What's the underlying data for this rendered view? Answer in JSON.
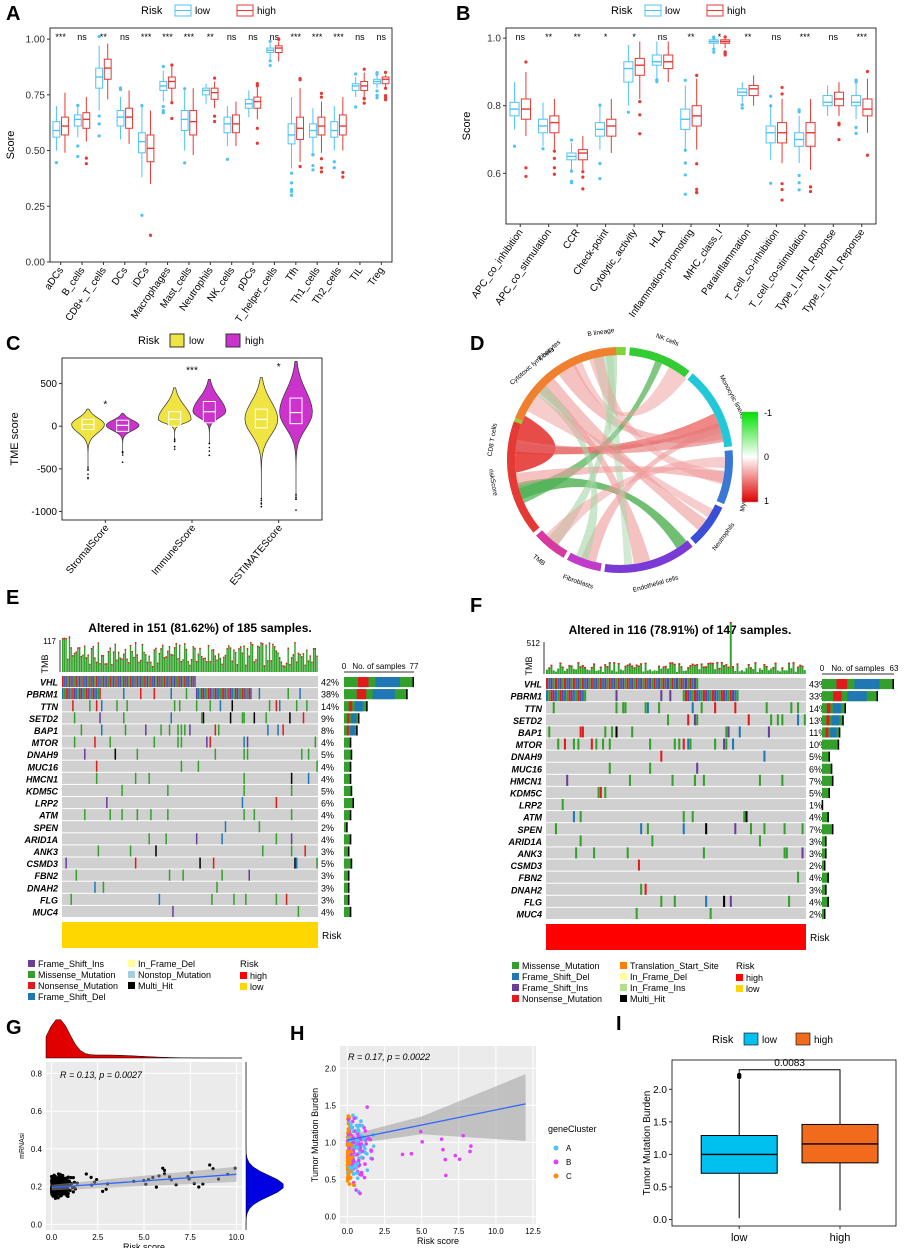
{
  "colors": {
    "low": "#4fc3f7",
    "high": "#e53935",
    "violin_low": "#f0e442",
    "violin_high": "#cc33cc",
    "grey": "#d0d0d0",
    "risk_high": "#ff0000",
    "risk_low": "#ffd700",
    "box_low": "#00c0ef",
    "box_high": "#f26b1d",
    "green": "#33a02c",
    "blue": "#1f78b4",
    "red": "#e31a1c",
    "purple": "#6a3d9a",
    "black": "#000000",
    "yellow": "#ffff99",
    "orange": "#ff7f00"
  },
  "panels": {
    "A": "A",
    "B": "B",
    "C": "C",
    "D": "D",
    "E": "E",
    "F": "F",
    "G": "G",
    "H": "H",
    "I": "I"
  },
  "chart_data": [
    {
      "id": "A",
      "type": "box",
      "legend_title": "Risk",
      "legend": [
        "low",
        "high"
      ],
      "ylabel": "Score",
      "ylim": [
        0,
        1.05
      ],
      "yticks": [
        0.0,
        0.25,
        0.5,
        0.75,
        1.0
      ],
      "ytick_labels": [
        "0.00",
        "0.25",
        "0.50",
        "0.75",
        "1.00"
      ],
      "categories": [
        "aDCs",
        "B_cells",
        "CD8+_T_cells",
        "DCs",
        "iDCs",
        "Macrophages",
        "Mast_cells",
        "Neutrophils",
        "NK_cells",
        "pDCs",
        "T_helper_cells",
        "Tfh",
        "Th1_cells",
        "Th2_cells",
        "TIL",
        "Treg"
      ],
      "significance": [
        "***",
        "ns",
        "**",
        "ns",
        "***",
        "***",
        "***",
        "**",
        "ns",
        "ns",
        "ns",
        "***",
        "***",
        "***",
        "ns",
        "ns"
      ],
      "series": [
        {
          "name": "low",
          "median": [
            0.59,
            0.64,
            0.83,
            0.65,
            0.54,
            0.79,
            0.64,
            0.77,
            0.62,
            0.71,
            0.95,
            0.57,
            0.59,
            0.59,
            0.79,
            0.81
          ],
          "q1": [
            0.56,
            0.61,
            0.78,
            0.61,
            0.49,
            0.77,
            0.59,
            0.75,
            0.58,
            0.69,
            0.94,
            0.53,
            0.56,
            0.56,
            0.77,
            0.8
          ],
          "q3": [
            0.63,
            0.66,
            0.87,
            0.68,
            0.58,
            0.81,
            0.68,
            0.78,
            0.65,
            0.73,
            0.96,
            0.62,
            0.62,
            0.63,
            0.8,
            0.82
          ],
          "lo": [
            0.5,
            0.56,
            0.68,
            0.55,
            0.38,
            0.72,
            0.5,
            0.71,
            0.52,
            0.65,
            0.91,
            0.42,
            0.49,
            0.5,
            0.74,
            0.78
          ],
          "hi": [
            0.7,
            0.7,
            0.97,
            0.74,
            0.7,
            0.86,
            0.77,
            0.8,
            0.7,
            0.77,
            0.98,
            0.74,
            0.69,
            0.7,
            0.83,
            0.84
          ]
        },
        {
          "name": "high",
          "median": [
            0.61,
            0.64,
            0.87,
            0.65,
            0.51,
            0.81,
            0.63,
            0.76,
            0.62,
            0.72,
            0.96,
            0.6,
            0.61,
            0.61,
            0.79,
            0.82
          ],
          "q1": [
            0.57,
            0.6,
            0.82,
            0.6,
            0.45,
            0.78,
            0.57,
            0.73,
            0.58,
            0.69,
            0.94,
            0.55,
            0.57,
            0.57,
            0.77,
            0.8
          ],
          "q3": [
            0.65,
            0.67,
            0.91,
            0.69,
            0.57,
            0.83,
            0.68,
            0.78,
            0.66,
            0.74,
            0.97,
            0.65,
            0.65,
            0.66,
            0.81,
            0.83
          ],
          "lo": [
            0.49,
            0.54,
            0.73,
            0.53,
            0.35,
            0.72,
            0.48,
            0.69,
            0.52,
            0.64,
            0.9,
            0.45,
            0.49,
            0.5,
            0.74,
            0.78
          ],
          "hi": [
            0.76,
            0.74,
            0.98,
            0.77,
            0.68,
            0.88,
            0.78,
            0.81,
            0.72,
            0.79,
            0.99,
            0.78,
            0.72,
            0.74,
            0.85,
            0.84
          ]
        }
      ]
    },
    {
      "id": "B",
      "type": "box",
      "legend_title": "Risk",
      "legend": [
        "low",
        "high"
      ],
      "ylabel": "Score",
      "ylim": [
        0.45,
        1.03
      ],
      "yticks": [
        0.6,
        0.8,
        1.0
      ],
      "ytick_labels": [
        "0.6",
        "0.8",
        "1.0"
      ],
      "categories": [
        "APC_co_inhibition",
        "APC_co_stimulation",
        "CCR",
        "Check-point",
        "Cytolytic_activity",
        "HLA",
        "Inflammation-promoting",
        "MHC_class_I",
        "Parainflammation",
        "T_cell_co-inhibition",
        "T_cell_co-stimulation",
        "Type_I_IFN_Reponse",
        "Type_II_IFN_Reponse"
      ],
      "significance": [
        "ns",
        "**",
        "**",
        "*",
        "*",
        "ns",
        "**",
        "*",
        "**",
        "ns",
        "***",
        "ns",
        "***"
      ],
      "series": [
        {
          "name": "low",
          "median": [
            0.79,
            0.74,
            0.65,
            0.73,
            0.91,
            0.93,
            0.76,
            0.99,
            0.84,
            0.72,
            0.7,
            0.81,
            0.81
          ],
          "q1": [
            0.77,
            0.72,
            0.64,
            0.71,
            0.87,
            0.92,
            0.73,
            0.985,
            0.83,
            0.69,
            0.68,
            0.8,
            0.8
          ],
          "q3": [
            0.81,
            0.76,
            0.66,
            0.75,
            0.93,
            0.95,
            0.79,
            0.995,
            0.85,
            0.74,
            0.72,
            0.83,
            0.83
          ],
          "lo": [
            0.73,
            0.68,
            0.61,
            0.67,
            0.8,
            0.88,
            0.67,
            0.97,
            0.81,
            0.64,
            0.63,
            0.77,
            0.76
          ],
          "hi": [
            0.87,
            0.81,
            0.69,
            0.8,
            0.98,
            0.99,
            0.86,
            1.0,
            0.87,
            0.8,
            0.77,
            0.86,
            0.87
          ]
        },
        {
          "name": "high",
          "median": [
            0.79,
            0.75,
            0.66,
            0.74,
            0.92,
            0.93,
            0.77,
            0.99,
            0.85,
            0.72,
            0.72,
            0.82,
            0.79
          ],
          "q1": [
            0.76,
            0.72,
            0.64,
            0.71,
            0.89,
            0.91,
            0.74,
            0.985,
            0.83,
            0.69,
            0.68,
            0.8,
            0.77
          ],
          "q3": [
            0.82,
            0.77,
            0.67,
            0.76,
            0.94,
            0.95,
            0.8,
            0.995,
            0.86,
            0.75,
            0.75,
            0.84,
            0.82
          ],
          "lo": [
            0.71,
            0.67,
            0.61,
            0.66,
            0.82,
            0.87,
            0.67,
            0.97,
            0.8,
            0.63,
            0.61,
            0.77,
            0.72
          ],
          "hi": [
            0.9,
            0.82,
            0.71,
            0.82,
            0.99,
            0.99,
            0.88,
            1.0,
            0.89,
            0.82,
            0.82,
            0.87,
            0.88
          ]
        }
      ]
    },
    {
      "id": "C",
      "type": "violin",
      "legend_title": "Risk",
      "legend": [
        "low",
        "high"
      ],
      "ylabel": "TME score",
      "ylim": [
        -1100,
        800
      ],
      "yticks": [
        500,
        0,
        -500,
        -1000
      ],
      "ytick_labels": [
        "500",
        "0",
        "-500",
        "-1000"
      ],
      "categories": [
        "StromalScore",
        "ImmuneScore",
        "ESTIMATEScore"
      ],
      "significance": [
        "*",
        "***",
        "*"
      ],
      "series": [
        {
          "name": "low",
          "median": [
            20,
            80,
            80
          ],
          "q1": [
            -40,
            0,
            -20
          ],
          "q3": [
            80,
            170,
            200
          ],
          "min": [
            -480,
            -150,
            -850
          ],
          "max": [
            200,
            450,
            570
          ]
        },
        {
          "name": "high",
          "median": [
            10,
            170,
            160
          ],
          "q1": [
            -60,
            40,
            30
          ],
          "q3": [
            70,
            290,
            330
          ],
          "min": [
            -300,
            -200,
            -800
          ],
          "max": [
            150,
            550,
            760
          ]
        }
      ]
    },
    {
      "id": "D",
      "type": "chord",
      "sectors": [
        "CD8 T cells",
        "Cytotoxic lymphocytes",
        "B lineage",
        "NK cells",
        "Monocytic lineage",
        "Myeloid dendritic cells",
        "Neutrophils",
        "Endothelial cells",
        "Fibroblasts",
        "TMB",
        "riskScore",
        "T cells"
      ],
      "color_scale": {
        "labels": [
          "-1",
          "0",
          "1"
        ],
        "range": [
          -1,
          1
        ]
      }
    },
    {
      "id": "E",
      "type": "oncoplot",
      "title": "Altered in 151 (81.62%) of 185 samples.",
      "tmb_axis_label": "TMB",
      "tmb_max": "117",
      "no_samples_label": "No. of samples",
      "no_samples_ticks": [
        "0",
        "77"
      ],
      "genes": [
        "VHL",
        "PBRM1",
        "TTN",
        "SETD2",
        "BAP1",
        "MTOR",
        "DNAH9",
        "MUC16",
        "HMCN1",
        "KDM5C",
        "LRP2",
        "ATM",
        "SPEN",
        "ARID1A",
        "ANK3",
        "CSMD3",
        "FBN2",
        "DNAH2",
        "FLG",
        "MUC4"
      ],
      "percents": [
        "42%",
        "38%",
        "14%",
        "9%",
        "8%",
        "4%",
        "5%",
        "4%",
        "4%",
        "5%",
        "6%",
        "4%",
        "2%",
        "4%",
        "3%",
        "5%",
        "3%",
        "3%",
        "3%",
        "4%"
      ],
      "counts": [
        77,
        70,
        26,
        17,
        15,
        8,
        9,
        8,
        8,
        9,
        11,
        8,
        4,
        8,
        6,
        9,
        6,
        6,
        6,
        8
      ],
      "risk_label": "Risk",
      "legend_items": [
        "Frame_Shift_Ins",
        "Missense_Mutation",
        "Nonsense_Mutation",
        "Frame_Shift_Del",
        "In_Frame_Del",
        "Nonstop_Mutation",
        "Multi_Hit"
      ],
      "risk_legend_title": "Risk",
      "risk_legend": [
        "high",
        "low"
      ]
    },
    {
      "id": "F",
      "type": "oncoplot",
      "title": "Altered in 116 (78.91%) of 147 samples.",
      "tmb_axis_label": "TMB",
      "tmb_max": "512",
      "no_samples_label": "No. of samples",
      "no_samples_ticks": [
        "0",
        "63"
      ],
      "genes": [
        "VHL",
        "PBRM1",
        "TTN",
        "SETD2",
        "BAP1",
        "MTOR",
        "DNAH9",
        "MUC16",
        "HMCN1",
        "KDM5C",
        "LRP2",
        "ATM",
        "SPEN",
        "ARID1A",
        "ANK3",
        "CSMD3",
        "FBN2",
        "DNAH2",
        "FLG",
        "MUC4"
      ],
      "percents": [
        "43%",
        "33%",
        "14%",
        "13%",
        "11%",
        "10%",
        "5%",
        "6%",
        "7%",
        "5%",
        "1%",
        "4%",
        "7%",
        "3%",
        "3%",
        "2%",
        "4%",
        "3%",
        "4%",
        "2%"
      ],
      "counts": [
        63,
        49,
        21,
        19,
        16,
        15,
        7,
        9,
        10,
        7,
        1,
        6,
        10,
        4,
        4,
        3,
        6,
        4,
        6,
        3
      ],
      "risk_label": "Risk",
      "legend_items": [
        "Missense_Mutation",
        "Frame_Shift_Del",
        "Frame_Shift_Ins",
        "Nonsense_Mutation",
        "Translation_Start_Site",
        "In_Frame_Del",
        "In_Frame_Ins",
        "Multi_Hit"
      ],
      "risk_legend_title": "Risk",
      "risk_legend": [
        "high",
        "low"
      ]
    },
    {
      "id": "G",
      "type": "scatter",
      "annotation": "R = 0.13, p = 0.0027",
      "xlabel": "Risk score",
      "ylabel": "mRNAsi",
      "xlim": [
        -0.3,
        10.3
      ],
      "ylim": [
        -0.03,
        0.86
      ],
      "xticks": [
        0.0,
        2.5,
        5.0,
        7.5,
        10.0
      ],
      "xtick_labels": [
        "0.0",
        "2.5",
        "5.0",
        "7.5",
        "10.0"
      ],
      "yticks": [
        0.0,
        0.2,
        0.4,
        0.6,
        0.8
      ],
      "ytick_labels": [
        "0.0",
        "0.2",
        "0.4",
        "0.6",
        "0.8"
      ],
      "fit": {
        "x": [
          0.0,
          10.0
        ],
        "y": [
          0.195,
          0.265
        ]
      }
    },
    {
      "id": "H",
      "type": "scatter",
      "annotation": "R = 0.17, p = 0.0022",
      "xlabel": "Risk score",
      "ylabel": "Tumor Mutation Burden",
      "xlim": [
        -0.5,
        12.7
      ],
      "ylim": [
        -0.1,
        2.3
      ],
      "xticks": [
        0.0,
        2.5,
        5.0,
        7.5,
        10.0,
        12.5
      ],
      "xtick_labels": [
        "0.0",
        "2.5",
        "5.0",
        "7.5",
        "10.0",
        "12.5"
      ],
      "yticks": [
        0.0,
        0.5,
        1.0,
        1.5,
        2.0
      ],
      "ytick_labels": [
        "0.0",
        "0.5",
        "1.0",
        "1.5",
        "2.0"
      ],
      "legend_title": "geneCluster",
      "legend": [
        "A",
        "B",
        "C"
      ],
      "fit": {
        "x": [
          0.0,
          12.0
        ],
        "y": [
          1.03,
          1.52
        ]
      }
    },
    {
      "id": "I",
      "type": "box",
      "legend_title": "Risk",
      "legend": [
        "low",
        "high"
      ],
      "ylabel": "Tumor Mutation Burden",
      "ylim": [
        -0.1,
        2.45
      ],
      "yticks": [
        0.0,
        0.5,
        1.0,
        1.5,
        2.0
      ],
      "ytick_labels": [
        "0.0",
        "0.5",
        "1.0",
        "1.5",
        "2.0"
      ],
      "categories": [
        "low",
        "high"
      ],
      "pvalue": "0.0083",
      "median": [
        1.0,
        1.16
      ],
      "q1": [
        0.71,
        0.87
      ],
      "q3": [
        1.29,
        1.46
      ],
      "lo": [
        0.02,
        0.14
      ],
      "hi": [
        2.15,
        2.22
      ],
      "outliers": [
        [
          2.19,
          2.22
        ],
        []
      ]
    }
  ]
}
